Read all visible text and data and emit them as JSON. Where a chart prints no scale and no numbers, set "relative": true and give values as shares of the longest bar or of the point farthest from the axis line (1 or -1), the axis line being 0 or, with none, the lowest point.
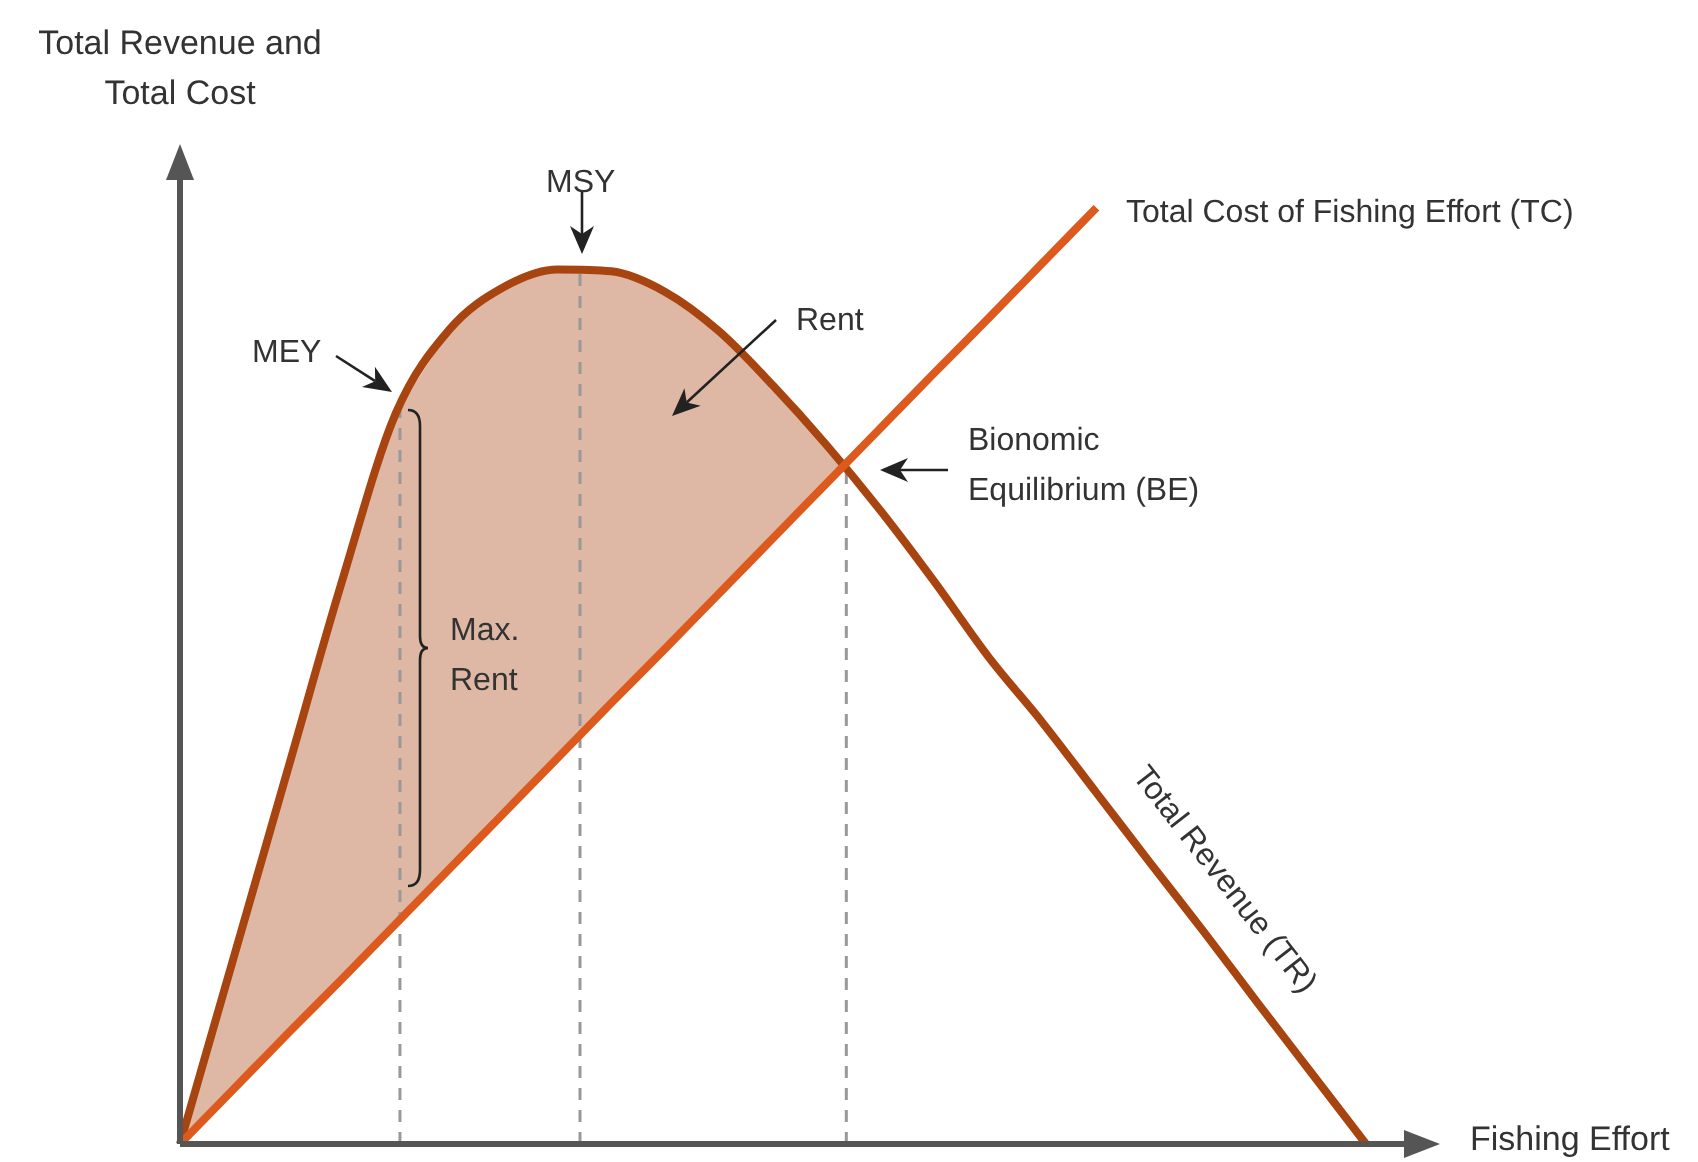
{
  "chart_data": {
    "type": "line",
    "relative": true,
    "xlabel": "Fishing Effort",
    "ylabel": "Total Revenue and Total Cost",
    "categories": [
      null,
      null,
      null,
      null,
      null,
      null,
      null,
      null,
      null,
      null,
      null,
      null,
      null,
      null,
      null,
      null,
      null,
      null,
      null,
      null,
      null,
      null,
      null
    ],
    "series": [
      {
        "name": "Total Revenue (TR)",
        "type": "line",
        "color": "#a8440f",
        "values": [
          0,
          0.2,
          0.4,
          0.6,
          0.78,
          0.87,
          0.915,
          0.934,
          0.932,
          0.91,
          0.868,
          0.81,
          0.746,
          0.676,
          0.6,
          0.52,
          0.45,
          0.375,
          0.3,
          0.226,
          0.15,
          0.075,
          0
        ],
        "lower": [
          0,
          0.059,
          0.118,
          0.176,
          0.235,
          0.294,
          0.353,
          0.412,
          0.471,
          0.529,
          0.588,
          0.647,
          0.706,
          0.765,
          null,
          null,
          null,
          null,
          null,
          null,
          null,
          null,
          null
        ],
        "upper": [
          0,
          0.2,
          0.4,
          0.6,
          0.78,
          0.87,
          0.915,
          0.934,
          0.932,
          0.91,
          0.868,
          0.81,
          0.746,
          0.676,
          null,
          null,
          null,
          null,
          null,
          null,
          null,
          null,
          null
        ]
      },
      {
        "name": "Total Cost of Fishing Effort (TC)",
        "type": "line",
        "color": "#dc5a1e",
        "values": [
          0,
          0.059,
          0.118,
          0.176,
          0.235,
          0.294,
          0.353,
          0.412,
          0.471,
          0.529,
          0.588,
          0.647,
          0.706,
          0.765,
          0.824,
          0.882,
          0.941,
          1,
          null,
          null,
          null,
          null,
          null
        ]
      }
    ],
    "annotations": [
      "MSY",
      "MEY",
      "Rent",
      "Bionomic Equilibrium (BE)",
      "Max. Rent"
    ],
    "legend": false,
    "marker": "none",
    "line_style": "solid"
  }
}
